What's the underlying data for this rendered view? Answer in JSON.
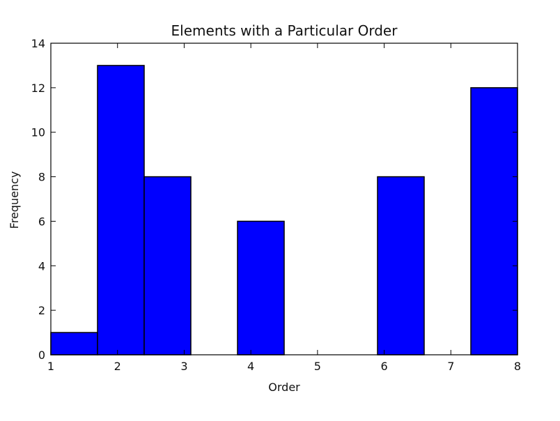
{
  "chart_data": {
    "type": "bar",
    "title": "Elements with a Particular Order",
    "xlabel": "Order",
    "ylabel": "Frequency",
    "xlim": [
      1,
      8
    ],
    "ylim": [
      0,
      14
    ],
    "xticks": [
      "1",
      "2",
      "3",
      "4",
      "5",
      "6",
      "7",
      "8"
    ],
    "yticks": [
      "0",
      "2",
      "4",
      "6",
      "8",
      "10",
      "12",
      "14"
    ],
    "bins": [
      {
        "x0": 1.0,
        "x1": 1.7,
        "value": 1
      },
      {
        "x0": 1.7,
        "x1": 2.4,
        "value": 13
      },
      {
        "x0": 2.4,
        "x1": 3.1,
        "value": 8
      },
      {
        "x0": 3.1,
        "x1": 3.8,
        "value": 0
      },
      {
        "x0": 3.8,
        "x1": 4.5,
        "value": 6
      },
      {
        "x0": 4.5,
        "x1": 5.2,
        "value": 0
      },
      {
        "x0": 5.2,
        "x1": 5.9,
        "value": 0
      },
      {
        "x0": 5.9,
        "x1": 6.6,
        "value": 8
      },
      {
        "x0": 6.6,
        "x1": 7.3,
        "value": 0
      },
      {
        "x0": 7.3,
        "x1": 8.0,
        "value": 12
      }
    ],
    "bar_color": "#0000ff",
    "edge_color": "#000000",
    "grid": false,
    "legend": "none"
  }
}
